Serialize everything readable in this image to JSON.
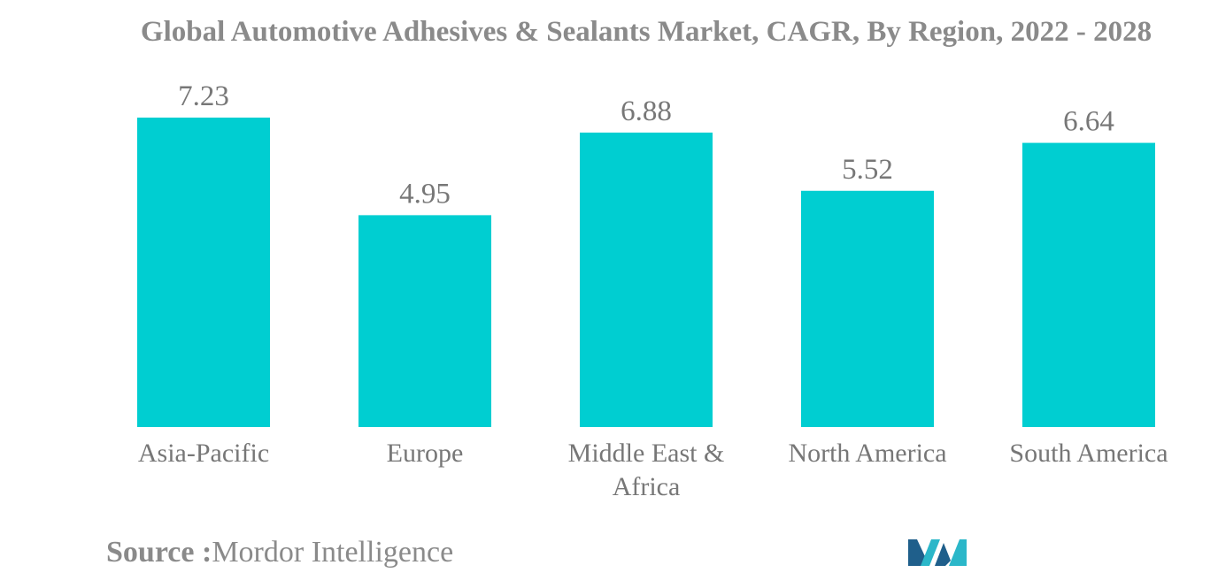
{
  "chart_data": {
    "type": "bar",
    "title": "Global Automotive Adhesives & Sealants Market, CAGR, By Region, 2022 - 2028",
    "categories": [
      [
        "Asia-Pacific"
      ],
      [
        "Europe"
      ],
      [
        "Middle East &",
        "Africa"
      ],
      [
        "North America"
      ],
      [
        "South America"
      ]
    ],
    "values": [
      7.23,
      4.95,
      6.88,
      5.52,
      6.64
    ],
    "data_labels": [
      "7.23",
      "4.95",
      "6.88",
      "5.52",
      "6.64"
    ],
    "xlabel": "",
    "ylabel": "",
    "ylim": [
      0,
      7.23
    ],
    "grid": false,
    "legend": "none",
    "bar_color": "#00ced1",
    "label_color": "#777777"
  },
  "source": {
    "label": "Source :",
    "value": "Mordor Intelligence"
  },
  "logo": {
    "icon": "mordor-intelligence-logo-icon",
    "colors": [
      "#1f5f8b",
      "#2bb7c9"
    ]
  }
}
